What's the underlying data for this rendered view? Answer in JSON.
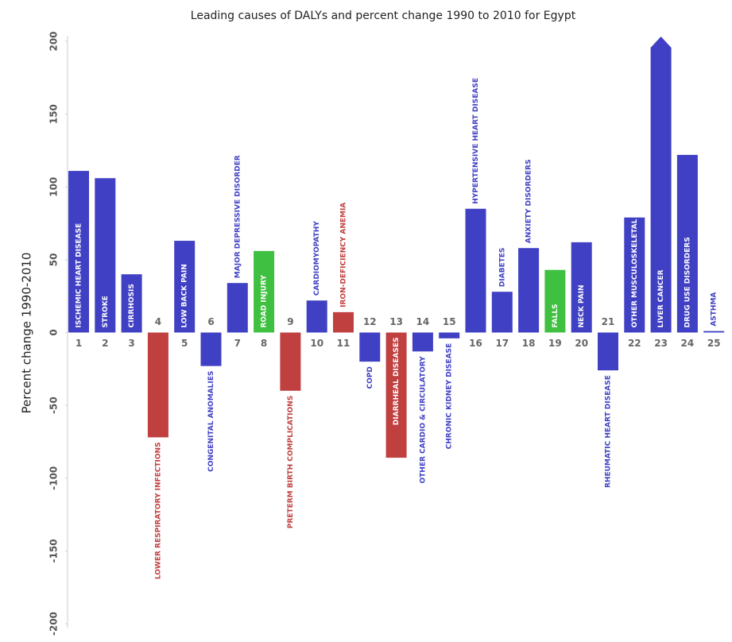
{
  "chart_data": {
    "type": "bar",
    "title": "Leading causes of DALYs and percent change 1990 to 2010 for Egypt",
    "y_label": "Percent change 1990-2010",
    "categories": [
      "1",
      "2",
      "3",
      "4",
      "5",
      "6",
      "7",
      "8",
      "9",
      "10",
      "11",
      "12",
      "13",
      "14",
      "15",
      "16",
      "17",
      "18",
      "19",
      "20",
      "21",
      "22",
      "23",
      "24",
      "25"
    ],
    "labels": [
      "ISCHEMIC HEART DISEASE",
      "STROKE",
      "CIRRHOSIS",
      "LOWER RESPIRATORY INFECTIONS",
      "LOW BACK PAIN",
      "CONGENITAL ANOMALIES",
      "MAJOR DEPRESSIVE DISORDER",
      "ROAD INJURY",
      "PRETERM BIRTH COMPLICATIONS",
      "CARDIOMYOPATHY",
      "IRON-DEFICIENCY ANEMIA",
      "COPD",
      "DIARRHEAL DISEASES",
      "OTHER CARDIO & CIRCULATORY",
      "CHRONIC KIDNEY DISEASE",
      "HYPERTENSIVE HEART DISEASE",
      "DIABETES",
      "ANXIETY DISORDERS",
      "FALLS",
      "NECK PAIN",
      "RHEUMATIC HEART DISEASE",
      "OTHER MUSCULOSKELETAL",
      "LIVER CANCER",
      "DRUG USE DISORDERS",
      "ASTHMA"
    ],
    "values": [
      111,
      106,
      40,
      -72,
      63,
      -23,
      34,
      56,
      -40,
      22,
      14,
      -20,
      -86,
      -13,
      -4,
      85,
      28,
      58,
      43,
      62,
      -26,
      79,
      210,
      122,
      1
    ],
    "colors": [
      "#4040c4",
      "#4040c4",
      "#4040c4",
      "#c04040",
      "#4040c4",
      "#4040c4",
      "#4040c4",
      "#40c040",
      "#c04040",
      "#4040c4",
      "#c04040",
      "#4040c4",
      "#c04040",
      "#4040c4",
      "#4040c4",
      "#4040c4",
      "#4040c4",
      "#4040c4",
      "#40c040",
      "#4040c4",
      "#4040c4",
      "#4040c4",
      "#4040c4",
      "#4040c4",
      "#4040c4"
    ],
    "ylim": [
      -200,
      200
    ],
    "yticks": [
      -200,
      -150,
      -100,
      -50,
      0,
      50,
      100,
      150,
      200
    ]
  }
}
